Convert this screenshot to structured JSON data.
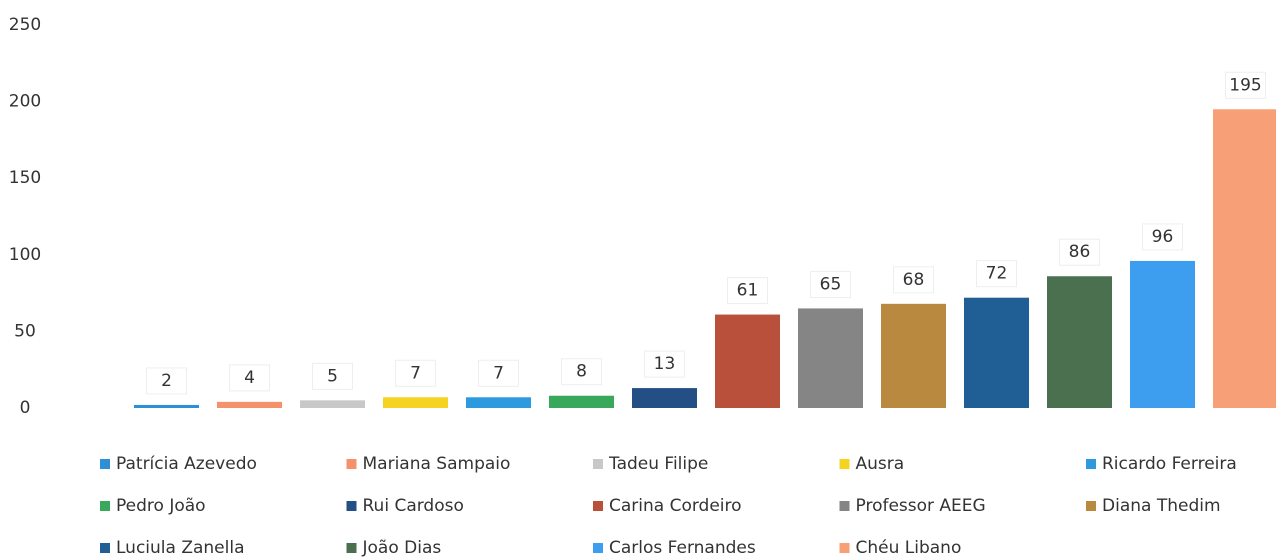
{
  "chart_data": {
    "type": "bar",
    "categories": [
      "Patrícia Azevedo",
      "Mariana Sampaio",
      "Tadeu Filipe",
      "Ausra",
      "Ricardo Ferreira",
      "Pedro João",
      "Rui Cardoso",
      "Carina Cordeiro",
      "Professor AEEG",
      "Diana Thedim",
      "Luciula Zanella",
      "João Dias",
      "Carlos Fernandes",
      "Chéu Libano"
    ],
    "values": [
      2,
      4,
      5,
      7,
      7,
      8,
      13,
      61,
      65,
      68,
      72,
      86,
      96,
      195
    ],
    "colors": [
      "#2e8fd6",
      "#f4926a",
      "#c8c8c8",
      "#f5d320",
      "#2d9ae0",
      "#3aa85a",
      "#244f85",
      "#b8503c",
      "#858585",
      "#b8893e",
      "#1f5f96",
      "#4a7050",
      "#3d9ef0",
      "#f7a077"
    ],
    "ylim": [
      0,
      250
    ],
    "yticks": [
      0,
      50,
      100,
      150,
      200,
      250
    ],
    "grid": false
  }
}
